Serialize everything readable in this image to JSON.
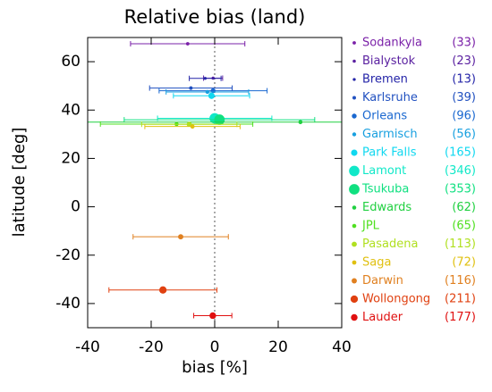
{
  "chart_data": {
    "type": "scatter",
    "title": "Relative bias (land)",
    "x_label": "bias [%]",
    "y_label": "latitude [deg]",
    "xlim": [
      -40,
      40
    ],
    "ylim": [
      -50,
      70
    ],
    "xticks": [
      -40,
      -20,
      0,
      20,
      40
    ],
    "yticks": [
      -40,
      -20,
      0,
      20,
      40,
      60
    ],
    "reference_line_x": 0,
    "series": [
      {
        "name": "Sodankyla",
        "color": "#7a20a8",
        "x": -8.5,
        "y": 67.4,
        "err": 18,
        "count": 33,
        "count_label": "(33)"
      },
      {
        "name": "Bialystok",
        "color": "#5a20a0",
        "x": -0.5,
        "y": 53.2,
        "err": 3,
        "count": 23,
        "count_label": "(23)"
      },
      {
        "name": "Bremen",
        "color": "#2424a8",
        "x": -3,
        "y": 53.1,
        "err": 5,
        "count": 13,
        "count_label": "(13)"
      },
      {
        "name": "Karlsruhe",
        "color": "#2050c0",
        "x": -7.5,
        "y": 49.1,
        "err": 13,
        "count": 39,
        "count_label": "(39)"
      },
      {
        "name": "Orleans",
        "color": "#1a68d0",
        "x": -0.5,
        "y": 48,
        "err": 17,
        "count": 96,
        "count_label": "(96)"
      },
      {
        "name": "Garmisch",
        "color": "#18a0e0",
        "x": -2.3,
        "y": 47.5,
        "err": 13,
        "count": 56,
        "count_label": "(56)"
      },
      {
        "name": "Park Falls",
        "color": "#10d8f0",
        "x": -1,
        "y": 45.9,
        "err": 12,
        "count": 165,
        "count_label": "(165)"
      },
      {
        "name": "Lamont",
        "color": "#10e8c8",
        "x": 0,
        "y": 36.6,
        "err": 18,
        "count": 346,
        "count_label": "(346)"
      },
      {
        "name": "Tsukuba",
        "color": "#10e080",
        "x": 1.5,
        "y": 36,
        "err": 30,
        "count": 353,
        "count_label": "(353)"
      },
      {
        "name": "Edwards",
        "color": "#20d040",
        "x": 27,
        "y": 35,
        "err": 70,
        "count": 62,
        "count_label": "(62)"
      },
      {
        "name": "JPL",
        "color": "#50e020",
        "x": -12,
        "y": 34.2,
        "err": 24,
        "count": 65,
        "count_label": "(65)"
      },
      {
        "name": "Pasadena",
        "color": "#b0e020",
        "x": -8,
        "y": 34.1,
        "err": 15,
        "count": 113,
        "count_label": "(113)"
      },
      {
        "name": "Saga",
        "color": "#e0c010",
        "x": -7,
        "y": 33.2,
        "err": 15,
        "count": 72,
        "count_label": "(72)"
      },
      {
        "name": "Darwin",
        "color": "#e08020",
        "x": -10.7,
        "y": -12.4,
        "err": 15,
        "count": 116,
        "count_label": "(116)"
      },
      {
        "name": "Wollongong",
        "color": "#e04010",
        "x": -16.3,
        "y": -34.4,
        "err": 17,
        "count": 211,
        "count_label": "(211)"
      },
      {
        "name": "Lauder",
        "color": "#e01010",
        "x": -0.6,
        "y": -45,
        "err": 6,
        "count": 177,
        "count_label": "(177)"
      }
    ]
  }
}
